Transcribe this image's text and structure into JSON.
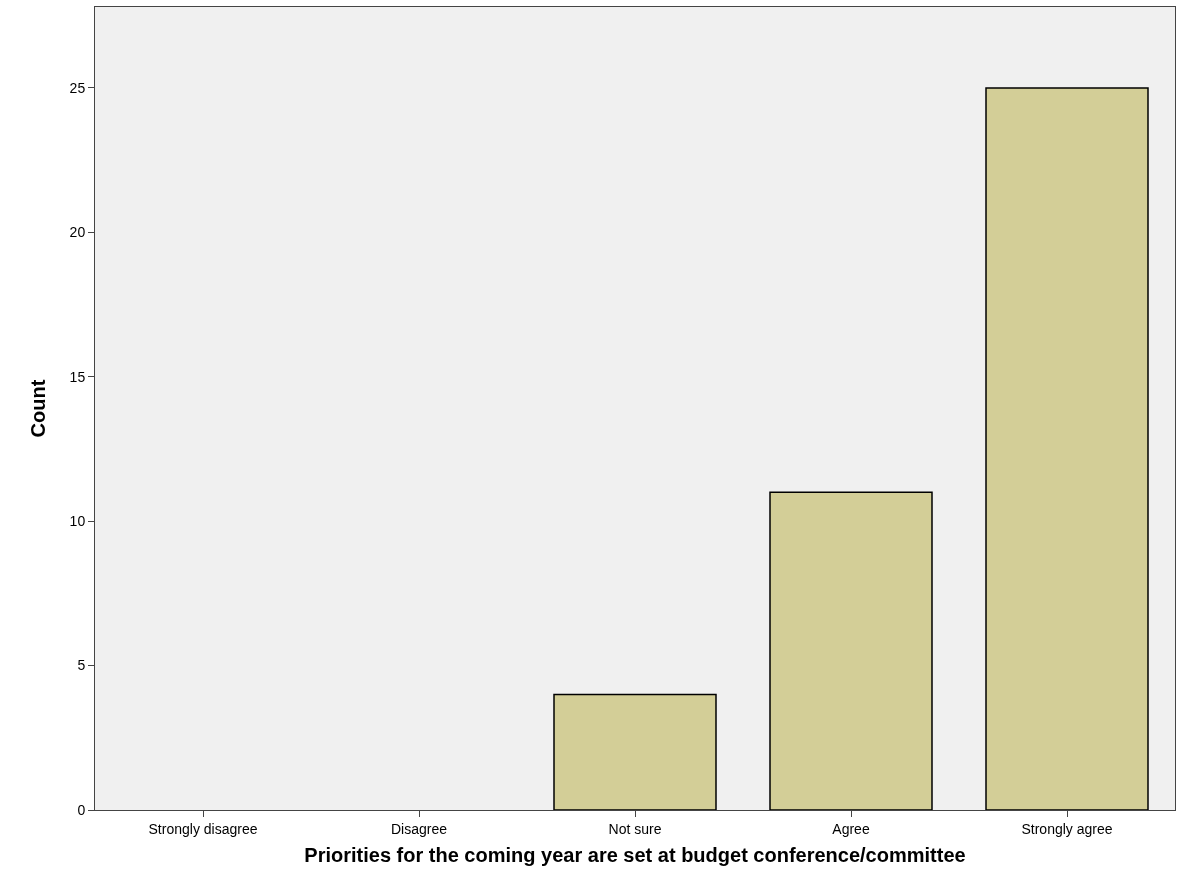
{
  "chart_data": {
    "type": "bar",
    "xlabel": "Priorities for the coming year are set at budget conference/committee",
    "ylabel": "Count",
    "categories": [
      "Strongly disagree",
      "Disagree",
      "Not sure",
      "Agree",
      "Strongly agree"
    ],
    "values": [
      0,
      0,
      4,
      11,
      25
    ],
    "color": "#d3ce97",
    "ylim": [
      0,
      27.8
    ],
    "yticks": [
      0,
      5,
      10,
      15,
      20,
      25
    ],
    "grid": false
  }
}
